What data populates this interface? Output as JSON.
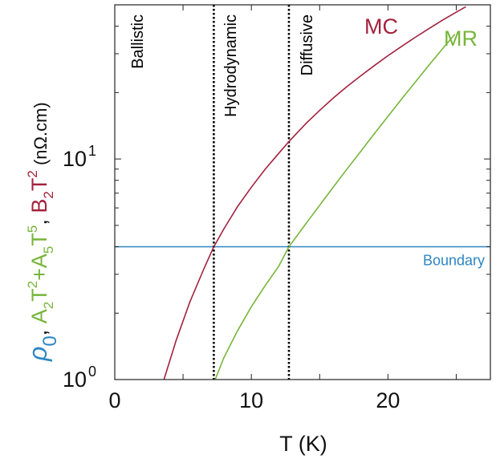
{
  "chart_data": {
    "type": "line",
    "xlabel": "T (K)",
    "ylabel_parts": {
      "rho": "ρ",
      "rho_sub": "0",
      "sep1": ", ",
      "a2": "A",
      "a2_sub": "2",
      "t2": "T",
      "t2_sup": "2",
      "plus": "+A",
      "a5_sub": "5",
      "t5": "T",
      "t5_sup": "5",
      "sep2": ", ",
      "b2": "B",
      "b2_sub": "2",
      "t2b": "T",
      "t2b_sup": "2",
      "unit": " (nΩ.cm)"
    },
    "yscale": "log",
    "xlim": [
      0,
      27.5
    ],
    "ylim": [
      1,
      50
    ],
    "x_ticks": [
      {
        "value": 0,
        "label": "0"
      },
      {
        "value": 10,
        "label": "10"
      },
      {
        "value": 20,
        "label": "20"
      }
    ],
    "y_ticks": [
      {
        "value": 1,
        "base": "10",
        "exp": "0"
      },
      {
        "value": 10,
        "base": "10",
        "exp": "1"
      }
    ],
    "series": [
      {
        "name": "MC",
        "color": "#a3223e",
        "x": [
          3.6,
          4.5,
          5.5,
          6.5,
          7.25,
          8,
          9,
          10,
          11,
          12,
          12.75,
          14,
          15,
          16,
          17,
          18,
          19,
          20,
          21,
          22,
          23,
          24,
          25,
          25.7
        ],
        "y": [
          1.0,
          1.51,
          2.25,
          3.15,
          4.0,
          4.83,
          6.1,
          7.45,
          8.97,
          10.6,
          12.0,
          14.5,
          16.6,
          18.9,
          21.3,
          23.8,
          26.5,
          29.4,
          32.4,
          35.6,
          39.0,
          42.6,
          46.3,
          49.0
        ]
      },
      {
        "name": "MR",
        "color": "#77b53a",
        "x": [
          7.35,
          8,
          9,
          10,
          11,
          12,
          12.75,
          14,
          15,
          16,
          17,
          18,
          19,
          20,
          21,
          22,
          23,
          24,
          24.9
        ],
        "y": [
          1.0,
          1.26,
          1.67,
          2.14,
          2.66,
          3.26,
          4.0,
          5.1,
          6.17,
          7.46,
          9.0,
          10.8,
          13.0,
          15.6,
          18.7,
          22.3,
          26.6,
          31.6,
          36.8
        ]
      }
    ],
    "hline": {
      "name": "Boundary",
      "value": 4.0,
      "color": "#2e86c1"
    },
    "vlines": [
      7.25,
      12.75
    ],
    "regions": [
      "Ballistic",
      "Hydrodynamic",
      "Diffusive"
    ]
  }
}
